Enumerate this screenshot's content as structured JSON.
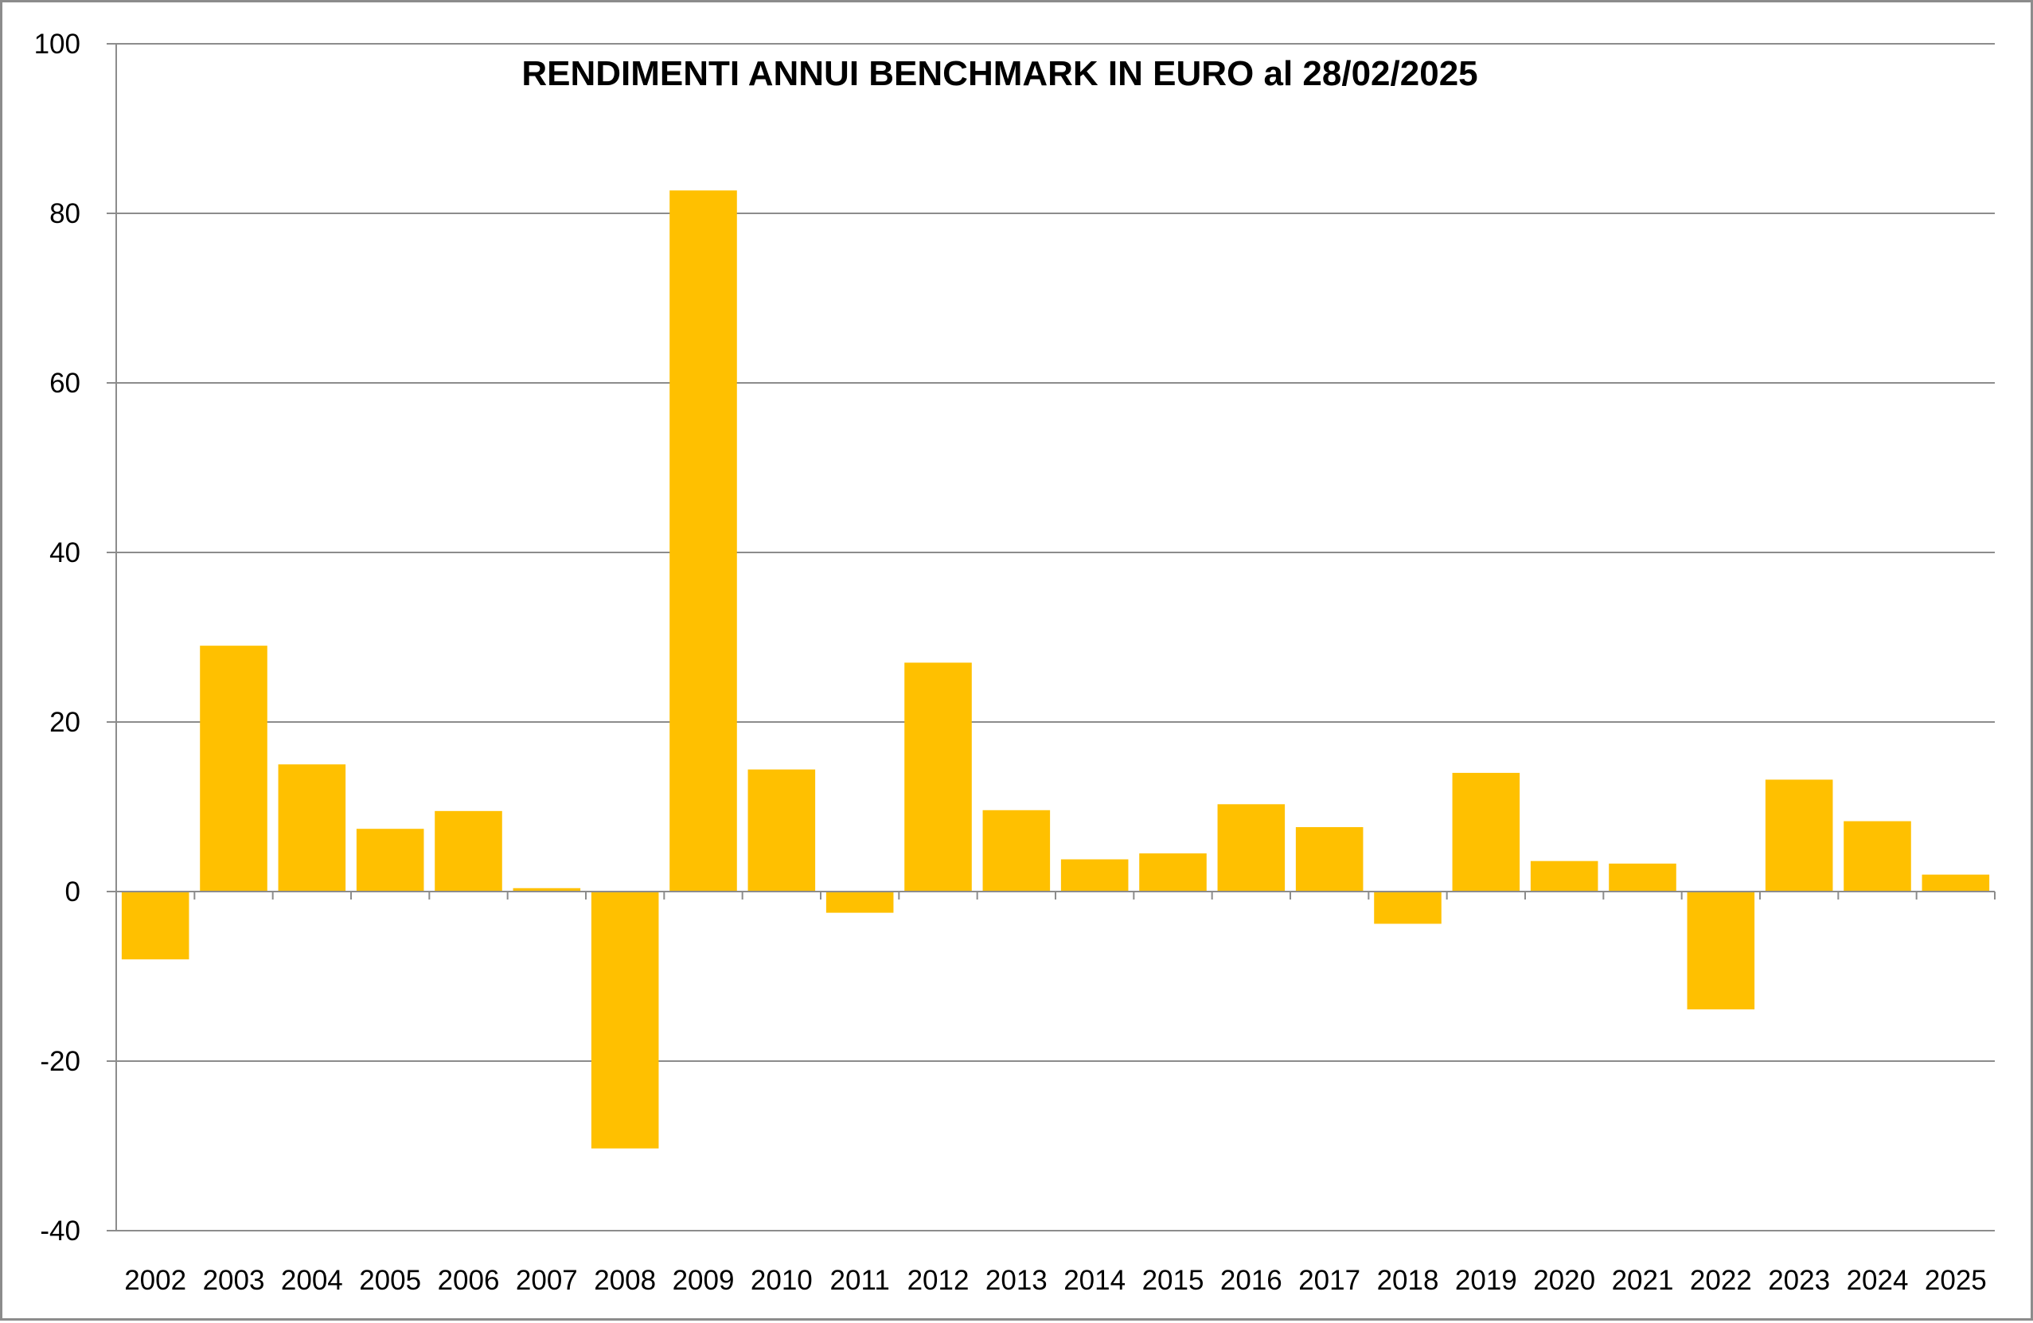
{
  "chart_data": {
    "type": "bar",
    "title": "RENDIMENTI ANNUI BENCHMARK IN EURO al 28/02/2025",
    "xlabel": "",
    "ylabel": "",
    "ylim": [
      -40,
      100
    ],
    "yticks": [
      100,
      80,
      60,
      40,
      20,
      0,
      -20,
      -40
    ],
    "grid": true,
    "legend": "none",
    "bar_color": "#FFC000",
    "grid_color": "#8c8c8c",
    "categories": [
      "2002",
      "2003",
      "2004",
      "2005",
      "2006",
      "2007",
      "2008",
      "2009",
      "2010",
      "2011",
      "2012",
      "2013",
      "2014",
      "2015",
      "2016",
      "2017",
      "2018",
      "2019",
      "2020",
      "2021",
      "2022",
      "2023",
      "2024",
      "2025"
    ],
    "values": [
      -8,
      29,
      15,
      7.4,
      9.5,
      0.4,
      -30.3,
      82.7,
      14.4,
      -2.5,
      27,
      9.6,
      3.8,
      4.5,
      10.3,
      7.6,
      -3.8,
      14,
      3.6,
      3.3,
      -13.9,
      13.2,
      8.3,
      2
    ]
  }
}
